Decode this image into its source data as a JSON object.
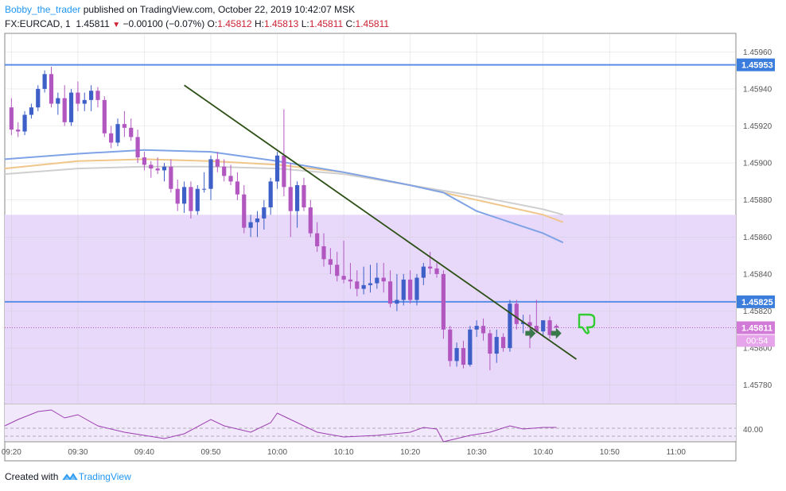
{
  "header": {
    "author": "Bobby_the_trader",
    "published_text": "published on TradingView.com, October 22, 2019 10:42:07 MSK",
    "symbol": "FX:EURCAD, 1",
    "last": "1.45811",
    "change_arrow": "▼",
    "change": "−0.00100 (−0.07%)",
    "o_label": "O:",
    "o": "1.45812",
    "h_label": "H:",
    "h": "1.45813",
    "l_label": "L:",
    "l": "1.45811",
    "c_label": "C:",
    "c": "1.45811"
  },
  "footer": {
    "created_with": "Created with",
    "brand": "TradingView"
  },
  "colors": {
    "up": "#3d5fc7",
    "down": "#b257c0",
    "zone": "#e8d9fb",
    "hline": "#5b8ee6",
    "trendline": "#2d5016",
    "ema_blue": "#7fa3e6",
    "ema_orange": "#f0c68a",
    "ema_gray": "#cfcfcf",
    "rsi": "#9b3fb0",
    "thumb": "#33cc33",
    "arrow": "#3a7a4a"
  },
  "chart_data": {
    "type": "candlestick",
    "symbol": "FX:EURCAD",
    "timeframe": "1",
    "ylim": [
      1.4577,
      1.4597
    ],
    "xlim": [
      "09:19",
      "11:09"
    ],
    "y_ticks": [
      "1.45960",
      "1.45940",
      "1.45920",
      "1.45900",
      "1.45880",
      "1.45860",
      "1.45840",
      "1.45820",
      "1.45800",
      "1.45780"
    ],
    "x_ticks": [
      "09:20",
      "09:30",
      "09:40",
      "09:50",
      "10:00",
      "10:10",
      "10:20",
      "10:30",
      "10:40",
      "10:50",
      "11:00"
    ],
    "horizontal_lines": [
      {
        "value": 1.45953,
        "label": "1.45953"
      },
      {
        "value": 1.45825,
        "label": "1.45825"
      }
    ],
    "price_label": {
      "value": 1.45811,
      "label": "1.45811",
      "countdown": "00:54"
    },
    "zone": {
      "from": 1.4577,
      "to": 1.45872
    },
    "trendline": {
      "from": {
        "t": "09:46",
        "p": 1.45942
      },
      "to": {
        "t": "10:45",
        "p": 1.45794
      }
    },
    "candles": [
      {
        "t": "09:20",
        "o": 1.4593,
        "h": 1.45935,
        "l": 1.45915,
        "c": 1.45918
      },
      {
        "t": "09:21",
        "o": 1.45918,
        "h": 1.45922,
        "l": 1.45914,
        "c": 1.45917
      },
      {
        "t": "09:22",
        "o": 1.45917,
        "h": 1.45928,
        "l": 1.45915,
        "c": 1.45926
      },
      {
        "t": "09:23",
        "o": 1.45926,
        "h": 1.45932,
        "l": 1.45924,
        "c": 1.4593
      },
      {
        "t": "09:24",
        "o": 1.4593,
        "h": 1.45942,
        "l": 1.45928,
        "c": 1.4594
      },
      {
        "t": "09:25",
        "o": 1.4594,
        "h": 1.4595,
        "l": 1.45938,
        "c": 1.45948
      },
      {
        "t": "09:26",
        "o": 1.45948,
        "h": 1.45952,
        "l": 1.4593,
        "c": 1.45932
      },
      {
        "t": "09:27",
        "o": 1.45932,
        "h": 1.45938,
        "l": 1.45926,
        "c": 1.45935
      },
      {
        "t": "09:28",
        "o": 1.45935,
        "h": 1.45942,
        "l": 1.4592,
        "c": 1.45922
      },
      {
        "t": "09:29",
        "o": 1.45922,
        "h": 1.4594,
        "l": 1.4592,
        "c": 1.45938
      },
      {
        "t": "09:30",
        "o": 1.45938,
        "h": 1.45944,
        "l": 1.45928,
        "c": 1.45932
      },
      {
        "t": "09:31",
        "o": 1.45932,
        "h": 1.45938,
        "l": 1.45928,
        "c": 1.45934
      },
      {
        "t": "09:32",
        "o": 1.45934,
        "h": 1.45942,
        "l": 1.45928,
        "c": 1.45939
      },
      {
        "t": "09:33",
        "o": 1.45939,
        "h": 1.45941,
        "l": 1.4593,
        "c": 1.45934
      },
      {
        "t": "09:34",
        "o": 1.45934,
        "h": 1.45936,
        "l": 1.45914,
        "c": 1.45916
      },
      {
        "t": "09:35",
        "o": 1.45916,
        "h": 1.4592,
        "l": 1.45908,
        "c": 1.45911
      },
      {
        "t": "09:36",
        "o": 1.45911,
        "h": 1.45924,
        "l": 1.45909,
        "c": 1.45921
      },
      {
        "t": "09:37",
        "o": 1.45921,
        "h": 1.45928,
        "l": 1.45914,
        "c": 1.45919
      },
      {
        "t": "09:38",
        "o": 1.45919,
        "h": 1.45924,
        "l": 1.45912,
        "c": 1.45914
      },
      {
        "t": "09:39",
        "o": 1.45914,
        "h": 1.45918,
        "l": 1.459,
        "c": 1.45903
      },
      {
        "t": "09:40",
        "o": 1.45903,
        "h": 1.45906,
        "l": 1.45896,
        "c": 1.45899
      },
      {
        "t": "09:41",
        "o": 1.45899,
        "h": 1.45901,
        "l": 1.45892,
        "c": 1.45897
      },
      {
        "t": "09:42",
        "o": 1.45897,
        "h": 1.45903,
        "l": 1.45894,
        "c": 1.45896
      },
      {
        "t": "09:43",
        "o": 1.45896,
        "h": 1.459,
        "l": 1.4589,
        "c": 1.45898
      },
      {
        "t": "09:44",
        "o": 1.45898,
        "h": 1.45902,
        "l": 1.45884,
        "c": 1.45886
      },
      {
        "t": "09:45",
        "o": 1.45886,
        "h": 1.45891,
        "l": 1.45874,
        "c": 1.45878
      },
      {
        "t": "09:46",
        "o": 1.45878,
        "h": 1.4589,
        "l": 1.45873,
        "c": 1.45887
      },
      {
        "t": "09:47",
        "o": 1.45887,
        "h": 1.4589,
        "l": 1.4587,
        "c": 1.45874
      },
      {
        "t": "09:48",
        "o": 1.45874,
        "h": 1.45888,
        "l": 1.45872,
        "c": 1.45886
      },
      {
        "t": "09:49",
        "o": 1.45886,
        "h": 1.45895,
        "l": 1.45884,
        "c": 1.45886
      },
      {
        "t": "09:50",
        "o": 1.45886,
        "h": 1.45904,
        "l": 1.4588,
        "c": 1.45902
      },
      {
        "t": "09:51",
        "o": 1.45902,
        "h": 1.45906,
        "l": 1.45895,
        "c": 1.45898
      },
      {
        "t": "09:52",
        "o": 1.45898,
        "h": 1.45902,
        "l": 1.4589,
        "c": 1.45893
      },
      {
        "t": "09:53",
        "o": 1.45893,
        "h": 1.45899,
        "l": 1.45888,
        "c": 1.4589
      },
      {
        "t": "09:54",
        "o": 1.4589,
        "h": 1.45895,
        "l": 1.4588,
        "c": 1.45883
      },
      {
        "t": "09:55",
        "o": 1.45883,
        "h": 1.45888,
        "l": 1.45862,
        "c": 1.45865
      },
      {
        "t": "09:56",
        "o": 1.45865,
        "h": 1.45872,
        "l": 1.4586,
        "c": 1.45868
      },
      {
        "t": "09:57",
        "o": 1.45868,
        "h": 1.45874,
        "l": 1.4586,
        "c": 1.4587
      },
      {
        "t": "09:58",
        "o": 1.4587,
        "h": 1.4588,
        "l": 1.45864,
        "c": 1.45876
      },
      {
        "t": "09:59",
        "o": 1.45876,
        "h": 1.45892,
        "l": 1.45872,
        "c": 1.4589
      },
      {
        "t": "10:00",
        "o": 1.4589,
        "h": 1.45906,
        "l": 1.45886,
        "c": 1.45904
      },
      {
        "t": "10:01",
        "o": 1.45904,
        "h": 1.45929,
        "l": 1.45882,
        "c": 1.45887
      },
      {
        "t": "10:02",
        "o": 1.45887,
        "h": 1.459,
        "l": 1.4586,
        "c": 1.45874
      },
      {
        "t": "10:03",
        "o": 1.45874,
        "h": 1.4589,
        "l": 1.45865,
        "c": 1.45888
      },
      {
        "t": "10:04",
        "o": 1.45888,
        "h": 1.45892,
        "l": 1.45874,
        "c": 1.45876
      },
      {
        "t": "10:05",
        "o": 1.45876,
        "h": 1.4588,
        "l": 1.4586,
        "c": 1.45862
      },
      {
        "t": "10:06",
        "o": 1.45862,
        "h": 1.45868,
        "l": 1.45852,
        "c": 1.45855
      },
      {
        "t": "10:07",
        "o": 1.45855,
        "h": 1.45862,
        "l": 1.45844,
        "c": 1.45848
      },
      {
        "t": "10:08",
        "o": 1.45848,
        "h": 1.45854,
        "l": 1.4584,
        "c": 1.45845
      },
      {
        "t": "10:09",
        "o": 1.45845,
        "h": 1.45852,
        "l": 1.45836,
        "c": 1.45839
      },
      {
        "t": "10:10",
        "o": 1.45839,
        "h": 1.45858,
        "l": 1.45835,
        "c": 1.45837
      },
      {
        "t": "10:11",
        "o": 1.45837,
        "h": 1.45846,
        "l": 1.45832,
        "c": 1.45836
      },
      {
        "t": "10:12",
        "o": 1.45836,
        "h": 1.45842,
        "l": 1.45828,
        "c": 1.45832
      },
      {
        "t": "10:13",
        "o": 1.45832,
        "h": 1.45844,
        "l": 1.45829,
        "c": 1.45834
      },
      {
        "t": "10:14",
        "o": 1.45834,
        "h": 1.45845,
        "l": 1.4583,
        "c": 1.45835
      },
      {
        "t": "10:15",
        "o": 1.45835,
        "h": 1.45846,
        "l": 1.45832,
        "c": 1.45838
      },
      {
        "t": "10:16",
        "o": 1.45838,
        "h": 1.45846,
        "l": 1.4583,
        "c": 1.45836
      },
      {
        "t": "10:17",
        "o": 1.45836,
        "h": 1.45842,
        "l": 1.45822,
        "c": 1.45824
      },
      {
        "t": "10:18",
        "o": 1.45824,
        "h": 1.4584,
        "l": 1.4582,
        "c": 1.45826
      },
      {
        "t": "10:19",
        "o": 1.45826,
        "h": 1.4584,
        "l": 1.45823,
        "c": 1.45837
      },
      {
        "t": "10:20",
        "o": 1.45837,
        "h": 1.45842,
        "l": 1.45824,
        "c": 1.45826
      },
      {
        "t": "10:21",
        "o": 1.45826,
        "h": 1.4584,
        "l": 1.45823,
        "c": 1.45838
      },
      {
        "t": "10:22",
        "o": 1.45838,
        "h": 1.45846,
        "l": 1.45834,
        "c": 1.45844
      },
      {
        "t": "10:23",
        "o": 1.45844,
        "h": 1.45852,
        "l": 1.4584,
        "c": 1.45843
      },
      {
        "t": "10:24",
        "o": 1.45843,
        "h": 1.45846,
        "l": 1.45838,
        "c": 1.4584
      },
      {
        "t": "10:25",
        "o": 1.4584,
        "h": 1.45842,
        "l": 1.45805,
        "c": 1.4581
      },
      {
        "t": "10:26",
        "o": 1.4581,
        "h": 1.45812,
        "l": 1.4579,
        "c": 1.45793
      },
      {
        "t": "10:27",
        "o": 1.45793,
        "h": 1.45803,
        "l": 1.4579,
        "c": 1.458
      },
      {
        "t": "10:28",
        "o": 1.458,
        "h": 1.45804,
        "l": 1.45789,
        "c": 1.45791
      },
      {
        "t": "10:29",
        "o": 1.45791,
        "h": 1.45812,
        "l": 1.4579,
        "c": 1.4581
      },
      {
        "t": "10:30",
        "o": 1.4581,
        "h": 1.45815,
        "l": 1.45806,
        "c": 1.45812
      },
      {
        "t": "10:31",
        "o": 1.45812,
        "h": 1.45816,
        "l": 1.45804,
        "c": 1.45808
      },
      {
        "t": "10:32",
        "o": 1.45808,
        "h": 1.4581,
        "l": 1.45788,
        "c": 1.45797
      },
      {
        "t": "10:33",
        "o": 1.45797,
        "h": 1.4581,
        "l": 1.45792,
        "c": 1.45806
      },
      {
        "t": "10:34",
        "o": 1.45806,
        "h": 1.45808,
        "l": 1.45798,
        "c": 1.458
      },
      {
        "t": "10:35",
        "o": 1.458,
        "h": 1.45826,
        "l": 1.45798,
        "c": 1.45824
      },
      {
        "t": "10:36",
        "o": 1.45824,
        "h": 1.45826,
        "l": 1.4581,
        "c": 1.45813
      },
      {
        "t": "10:37",
        "o": 1.45813,
        "h": 1.45818,
        "l": 1.45808,
        "c": 1.45814
      },
      {
        "t": "10:38",
        "o": 1.45814,
        "h": 1.45818,
        "l": 1.458,
        "c": 1.45812
      },
      {
        "t": "10:39",
        "o": 1.45812,
        "h": 1.45826,
        "l": 1.45808,
        "c": 1.45809
      },
      {
        "t": "10:40",
        "o": 1.45809,
        "h": 1.45815,
        "l": 1.45806,
        "c": 1.45815
      },
      {
        "t": "10:41",
        "o": 1.45815,
        "h": 1.45817,
        "l": 1.45805,
        "c": 1.45807
      },
      {
        "t": "10:42",
        "o": 1.45812,
        "h": 1.45813,
        "l": 1.45811,
        "c": 1.45811
      }
    ],
    "ema_blue": {
      "t": [
        "09:19",
        "09:30",
        "09:40",
        "09:50",
        "10:00",
        "10:10",
        "10:20",
        "10:25",
        "10:30",
        "10:40",
        "10:43"
      ],
      "v": [
        1.45902,
        1.45905,
        1.45907,
        1.45906,
        1.45901,
        1.45895,
        1.45888,
        1.45884,
        1.45874,
        1.45862,
        1.45857
      ]
    },
    "ema_orange": {
      "t": [
        "09:19",
        "09:30",
        "09:40",
        "09:50",
        "10:00",
        "10:10",
        "10:20",
        "10:30",
        "10:40",
        "10:43"
      ],
      "v": [
        1.45897,
        1.45901,
        1.45902,
        1.45901,
        1.45899,
        1.45895,
        1.45888,
        1.4588,
        1.45872,
        1.45868
      ]
    },
    "ema_gray": {
      "t": [
        "09:19",
        "09:30",
        "09:40",
        "09:50",
        "10:00",
        "10:10",
        "10:20",
        "10:30",
        "10:40",
        "10:43"
      ],
      "v": [
        1.45894,
        1.45897,
        1.45898,
        1.45898,
        1.45897,
        1.45894,
        1.45888,
        1.45882,
        1.45875,
        1.45872
      ]
    },
    "rsi": {
      "tick": "40.00",
      "t": [
        "09:19",
        "09:21",
        "09:24",
        "09:26",
        "09:28",
        "09:30",
        "09:33",
        "09:37",
        "09:40",
        "09:43",
        "09:46",
        "09:50",
        "09:52",
        "09:56",
        "09:59",
        "10:00",
        "10:01",
        "10:03",
        "10:06",
        "10:10",
        "10:15",
        "10:20",
        "10:22",
        "10:24",
        "10:25",
        "10:27",
        "10:29",
        "10:32",
        "10:35",
        "10:37",
        "10:40",
        "10:42"
      ],
      "v": [
        48,
        52,
        57,
        58,
        53,
        55,
        48,
        44,
        42,
        40,
        43,
        52,
        48,
        44,
        50,
        56,
        54,
        50,
        44,
        41,
        42,
        44,
        47,
        46,
        38,
        40,
        42,
        44,
        48,
        46,
        47,
        47
      ]
    }
  }
}
